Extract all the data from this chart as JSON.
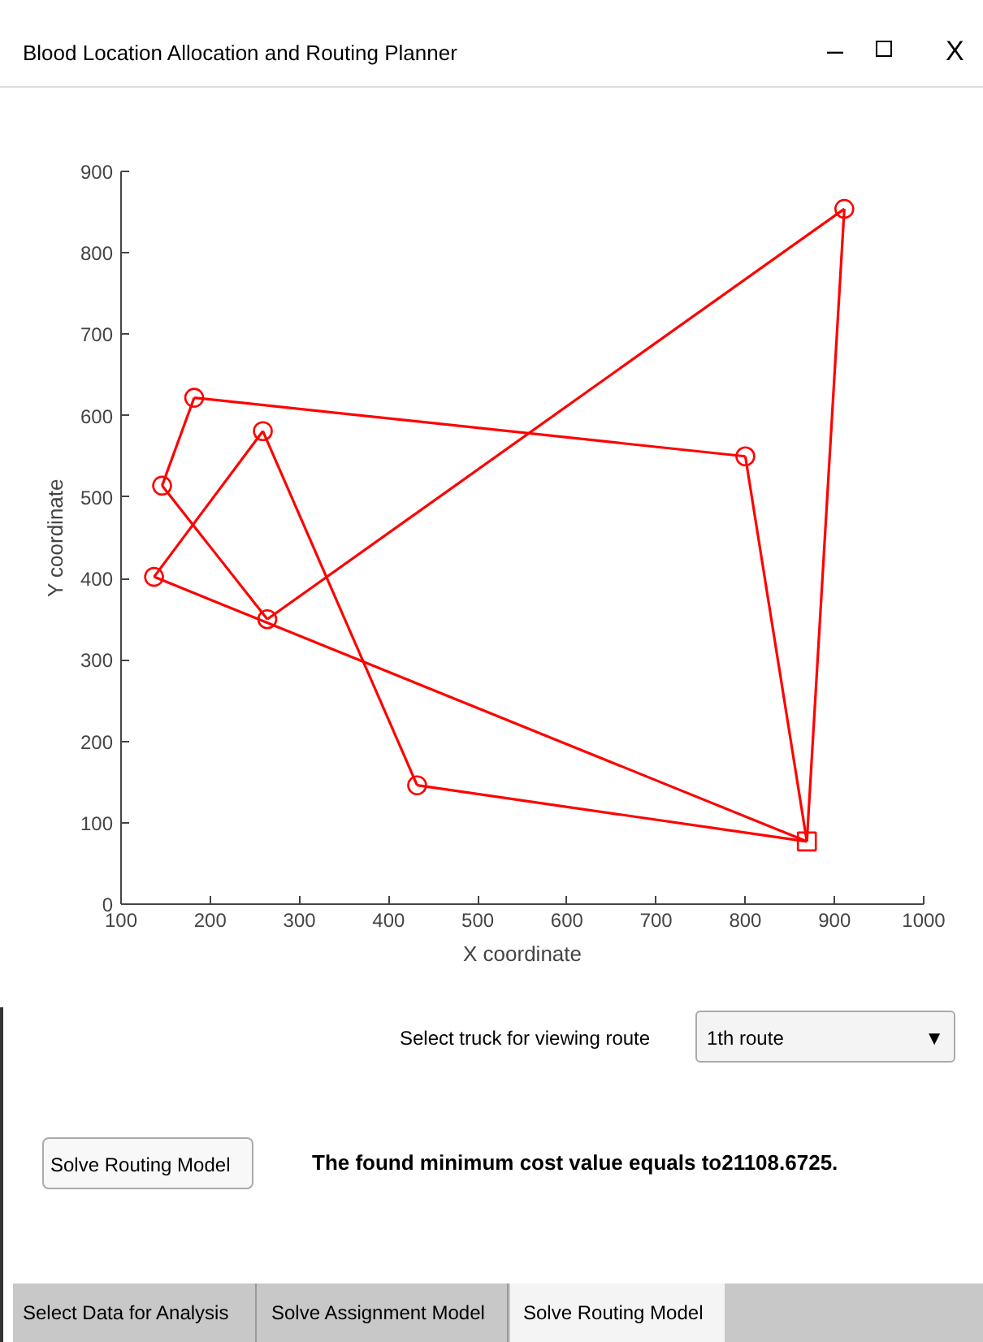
{
  "chart_data": {
    "type": "line",
    "title": "Blood Location Allocation and Routing Planner",
    "xlabel": "X coordinate",
    "ylabel": "Y coordinate",
    "xlim": [
      100,
      1000
    ],
    "ylim": [
      0,
      900
    ],
    "xticks": [
      100,
      200,
      300,
      400,
      500,
      600,
      700,
      800,
      900,
      1000
    ],
    "yticks": [
      0,
      100,
      200,
      300,
      400,
      500,
      600,
      700,
      800,
      900
    ],
    "series": [
      {
        "color": "#ff0000",
        "marker": "none",
        "x": [
          869,
          911
        ],
        "values": [
          77,
          854
        ]
      },
      {
        "color": "#ff0000",
        "marker": "none",
        "x": [
          264,
          911
        ],
        "values": [
          350,
          854
        ]
      },
      {
        "color": "#ff0000",
        "marker": "none",
        "x": [
          146,
          264
        ],
        "values": [
          514,
          350
        ]
      },
      {
        "color": "#ff0000",
        "marker": "none",
        "x": [
          146,
          182
        ],
        "values": [
          514,
          622
        ]
      },
      {
        "color": "#ff0000",
        "marker": "none",
        "x": [
          182,
          800
        ],
        "values": [
          622,
          550
        ]
      },
      {
        "color": "#ff0000",
        "marker": "none",
        "x": [
          800,
          869
        ],
        "values": [
          550,
          77
        ]
      },
      {
        "color": "#ff0000",
        "marker": "none",
        "x": [
          137,
          869
        ],
        "values": [
          402,
          77
        ]
      },
      {
        "color": "#ff0000",
        "marker": "none",
        "x": [
          137,
          259
        ],
        "values": [
          402,
          581
        ]
      },
      {
        "color": "#ff0000",
        "marker": "none",
        "x": [
          259,
          432
        ],
        "values": [
          581,
          146
        ]
      },
      {
        "color": "#ff0000",
        "marker": "none",
        "x": [
          432,
          869
        ],
        "values": [
          146,
          77
        ]
      },
      {
        "type": "scatter",
        "color": "#ff0000",
        "marker": "circle",
        "x": [
          911,
          264,
          146,
          182,
          800,
          137,
          259,
          432
        ],
        "values": [
          854,
          350,
          514,
          622,
          550,
          402,
          581,
          146
        ]
      },
      {
        "type": "scatter",
        "color": "#ff0000",
        "marker": "square",
        "x": [
          869
        ],
        "values": [
          77
        ]
      }
    ],
    "annotations": [
      "Select truck for viewing route",
      "1th route",
      "Solve Routing Model",
      "The found minimum cost value equals to21108.6725.",
      "Select Data for Analysis",
      "Solve Assignment Model",
      "Solve Routing Model",
      "–",
      "X",
      "▼"
    ]
  }
}
